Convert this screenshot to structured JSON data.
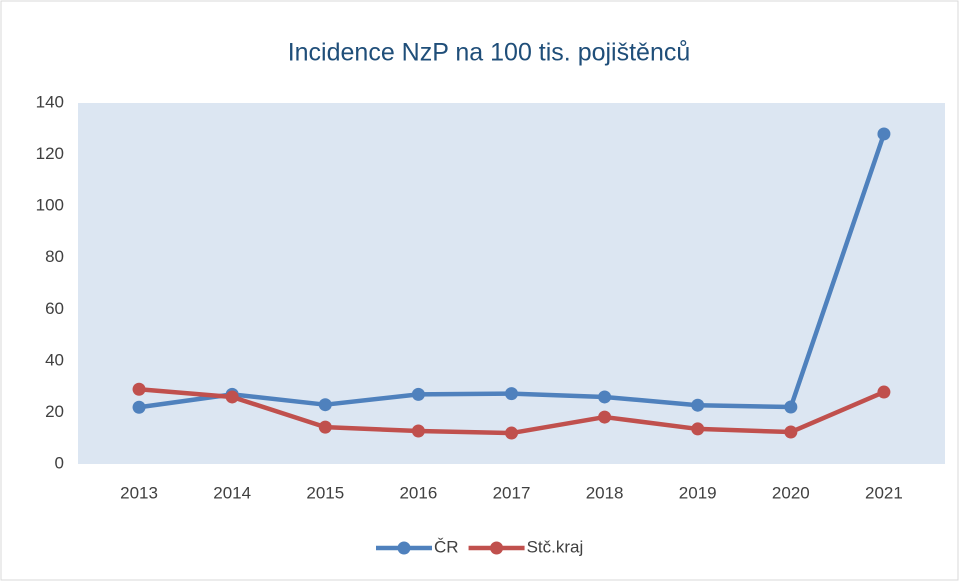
{
  "chart_data": {
    "type": "line",
    "title": "Incidence NzP na 100 tis. pojištěnců",
    "categories": [
      "2013",
      "2014",
      "2015",
      "2016",
      "2017",
      "2018",
      "2019",
      "2020",
      "2021"
    ],
    "series": [
      {
        "name": "ČR",
        "color": "#4f81bd",
        "values": [
          22,
          27,
          23,
          27,
          27.3,
          26,
          22.8,
          22.1,
          128
        ]
      },
      {
        "name": "Stč.kraj",
        "color": "#c0504d",
        "values": [
          29,
          26,
          14.3,
          12.8,
          12,
          18.2,
          13.6,
          12.4,
          27.9
        ]
      }
    ],
    "ylim": [
      0,
      140
    ],
    "yticks": [
      0,
      20,
      40,
      60,
      80,
      100,
      120,
      140
    ],
    "grid": false,
    "legend": "bottom"
  }
}
